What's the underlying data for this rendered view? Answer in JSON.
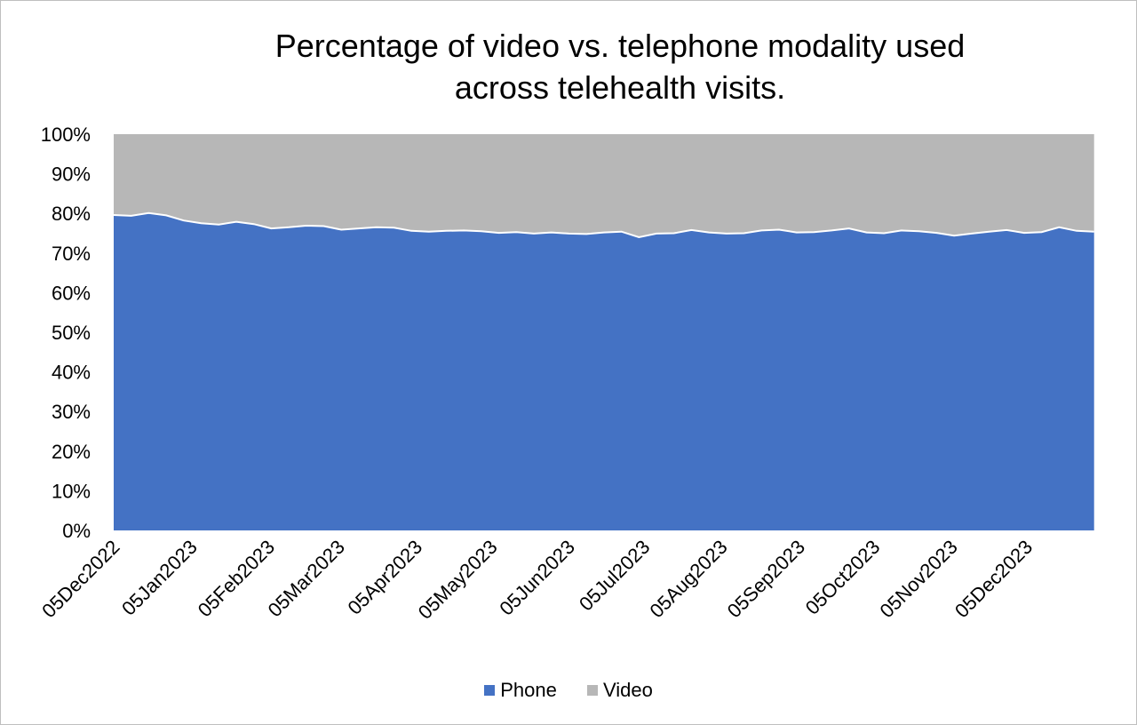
{
  "chart_data": {
    "type": "area",
    "stacked": true,
    "percent_stacked": true,
    "title_lines": [
      "Percentage of video vs. telephone modality used",
      "across telehealth visits."
    ],
    "xlabel": "",
    "ylabel": "",
    "ylim": [
      0,
      100
    ],
    "y_ticks": [
      "0%",
      "10%",
      "20%",
      "30%",
      "40%",
      "50%",
      "60%",
      "70%",
      "80%",
      "90%",
      "100%"
    ],
    "x_range": [
      "2022-12-05",
      "2024-01-05"
    ],
    "x_tick_labels": [
      {
        "date": "2022-12-05",
        "label": "05Dec2022"
      },
      {
        "date": "2023-01-05",
        "label": "05Jan2023"
      },
      {
        "date": "2023-02-05",
        "label": "05Feb2023"
      },
      {
        "date": "2023-03-05",
        "label": "05Mar2023"
      },
      {
        "date": "2023-04-05",
        "label": "05Apr2023"
      },
      {
        "date": "2023-05-05",
        "label": "05May2023"
      },
      {
        "date": "2023-06-05",
        "label": "05Jun2023"
      },
      {
        "date": "2023-07-05",
        "label": "05Jul2023"
      },
      {
        "date": "2023-08-05",
        "label": "05Aug2023"
      },
      {
        "date": "2023-09-05",
        "label": "05Sep2023"
      },
      {
        "date": "2023-10-05",
        "label": "05Oct2023"
      },
      {
        "date": "2023-11-05",
        "label": "05Nov2023"
      },
      {
        "date": "2023-12-05",
        "label": "05Dec2023"
      }
    ],
    "x": [
      "2022-12-05",
      "2022-12-12",
      "2022-12-19",
      "2022-12-26",
      "2023-01-02",
      "2023-01-09",
      "2023-01-16",
      "2023-01-23",
      "2023-01-30",
      "2023-02-06",
      "2023-02-13",
      "2023-02-20",
      "2023-02-27",
      "2023-03-06",
      "2023-03-13",
      "2023-03-20",
      "2023-03-27",
      "2023-04-03",
      "2023-04-10",
      "2023-04-17",
      "2023-04-24",
      "2023-05-01",
      "2023-05-08",
      "2023-05-15",
      "2023-05-22",
      "2023-05-29",
      "2023-06-05",
      "2023-06-12",
      "2023-06-19",
      "2023-06-26",
      "2023-07-03",
      "2023-07-10",
      "2023-07-17",
      "2023-07-24",
      "2023-07-31",
      "2023-08-07",
      "2023-08-14",
      "2023-08-21",
      "2023-08-28",
      "2023-09-04",
      "2023-09-11",
      "2023-09-18",
      "2023-09-25",
      "2023-10-02",
      "2023-10-09",
      "2023-10-16",
      "2023-10-23",
      "2023-10-30",
      "2023-11-06",
      "2023-11-13",
      "2023-11-20",
      "2023-11-27",
      "2023-12-04",
      "2023-12-11",
      "2023-12-18",
      "2023-12-25",
      "2024-01-01"
    ],
    "series": [
      {
        "name": "Phone",
        "color": "#4472C4",
        "values": [
          79.6,
          79.4,
          80.1,
          79.5,
          78.2,
          77.5,
          77.2,
          77.9,
          77.3,
          76.2,
          76.5,
          76.9,
          76.8,
          75.9,
          76.2,
          76.5,
          76.4,
          75.6,
          75.4,
          75.6,
          75.7,
          75.5,
          75.1,
          75.3,
          74.9,
          75.2,
          74.9,
          74.8,
          75.2,
          75.4,
          74.0,
          74.9,
          75.0,
          75.8,
          75.2,
          74.9,
          75.0,
          75.7,
          75.9,
          75.2,
          75.3,
          75.7,
          76.2,
          75.2,
          75.0,
          75.7,
          75.5,
          75.1,
          74.4,
          74.9,
          75.4,
          75.8,
          75.1,
          75.3,
          76.5,
          75.6,
          75.4
        ]
      },
      {
        "name": "Video",
        "color": "#B7B7B7",
        "values": [
          20.4,
          20.6,
          19.9,
          20.5,
          21.8,
          22.5,
          22.8,
          22.1,
          22.7,
          23.8,
          23.5,
          23.1,
          23.2,
          24.1,
          23.8,
          23.5,
          23.6,
          24.4,
          24.6,
          24.4,
          24.3,
          24.5,
          24.9,
          24.7,
          25.1,
          24.8,
          25.1,
          25.2,
          24.8,
          24.6,
          26.0,
          25.1,
          25.0,
          24.2,
          24.8,
          25.1,
          25.0,
          24.3,
          24.1,
          24.8,
          24.7,
          24.3,
          23.8,
          24.8,
          25.0,
          24.3,
          24.5,
          24.9,
          25.6,
          25.1,
          24.6,
          24.2,
          24.9,
          24.7,
          23.5,
          24.4,
          24.6
        ]
      }
    ],
    "legend": {
      "position": "bottom"
    },
    "grid": false
  }
}
